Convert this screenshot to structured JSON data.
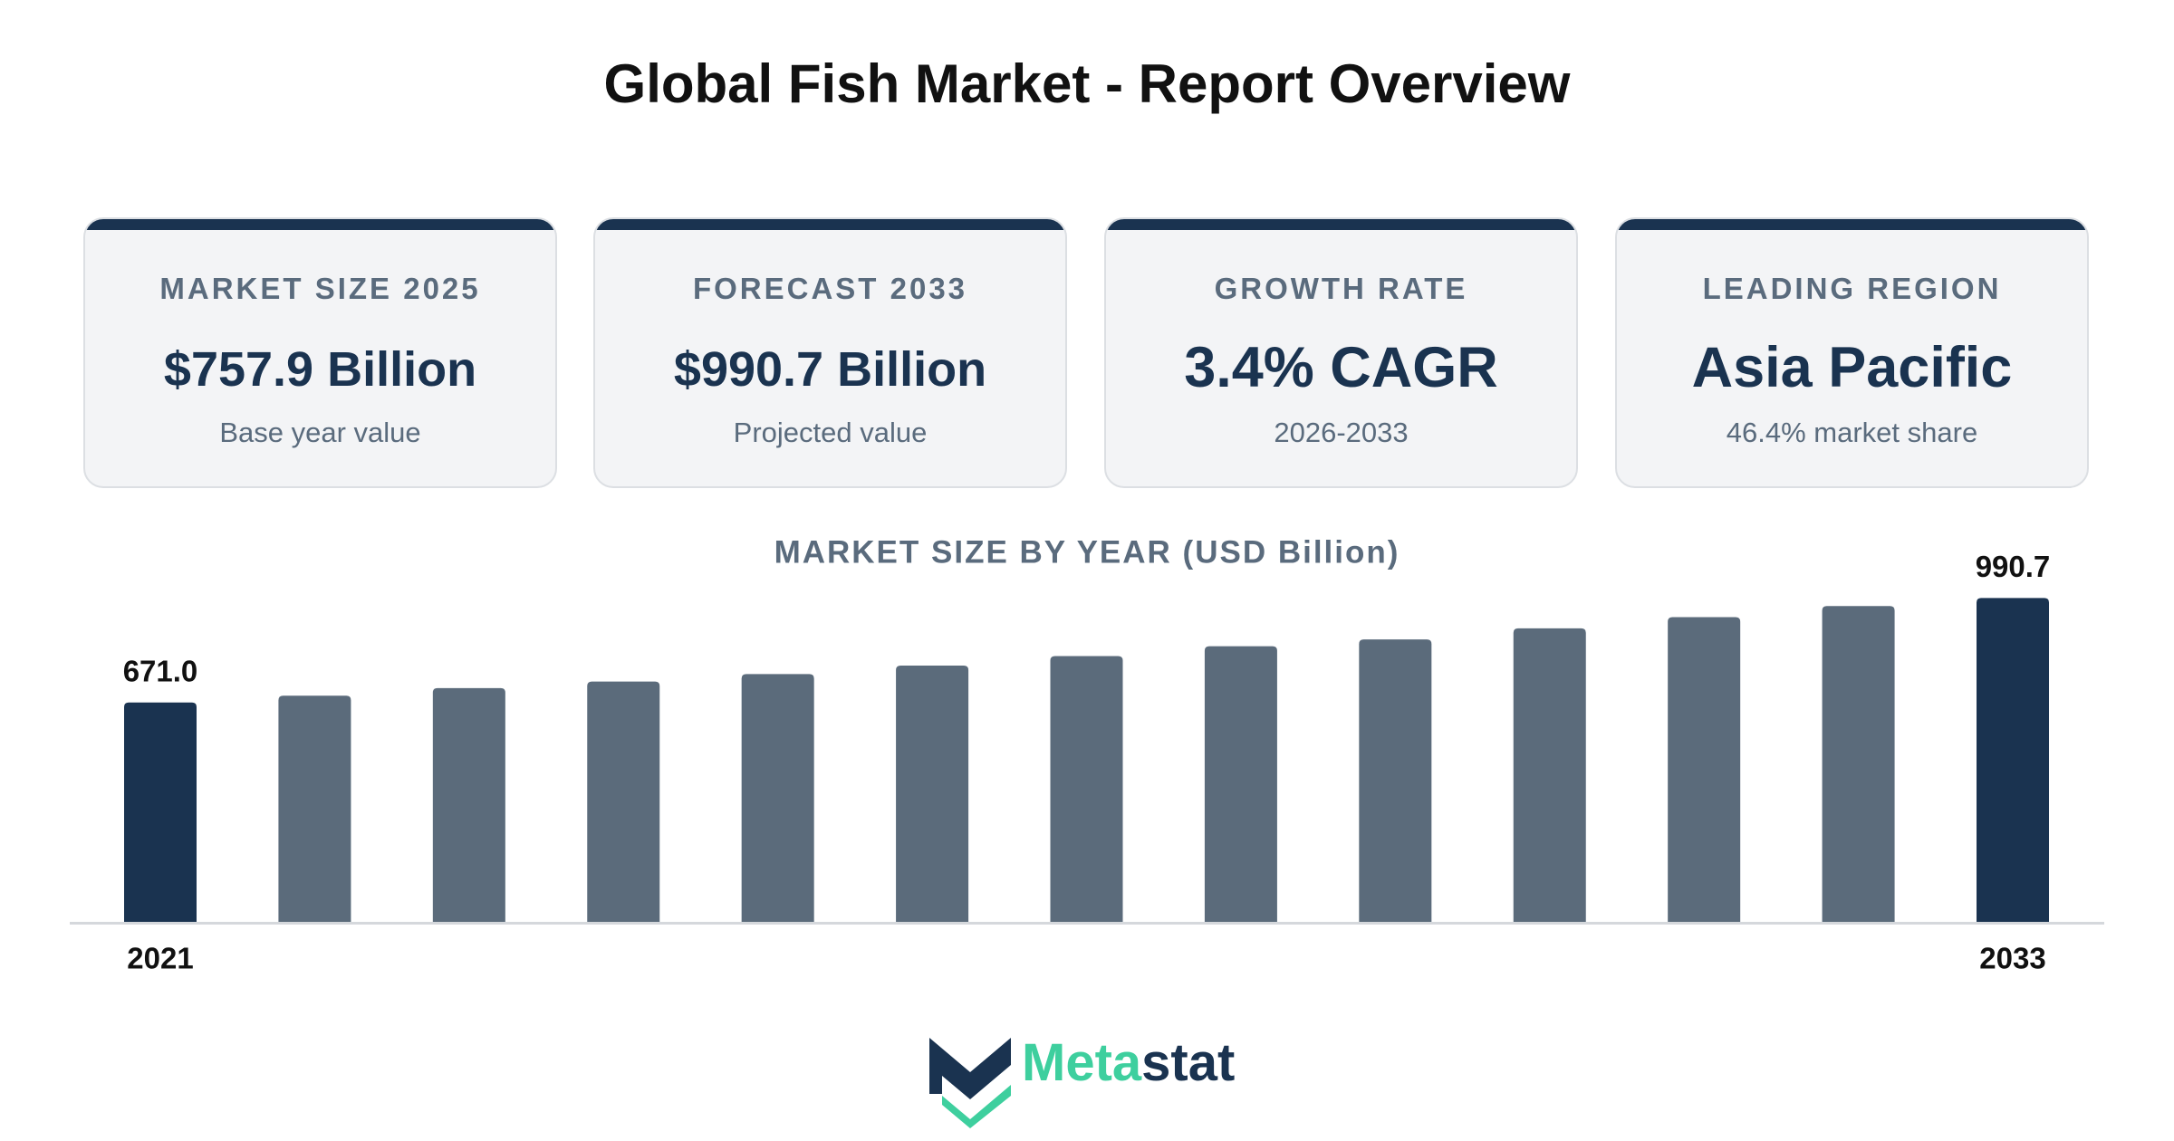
{
  "title": "Global Fish Market - Report Overview",
  "cards": [
    {
      "label": "MARKET SIZE 2025",
      "value": "$757.9 Billion",
      "sub": "Base year value"
    },
    {
      "label": "FORECAST 2033",
      "value": "$990.7 Billion",
      "sub": "Projected value"
    },
    {
      "label": "GROWTH RATE",
      "value": "3.4% CAGR",
      "sub": "2026-2033"
    },
    {
      "label": "LEADING REGION",
      "value": "Asia Pacific",
      "sub": "46.4% market share"
    }
  ],
  "chart_data": {
    "type": "bar",
    "title": "MARKET SIZE BY YEAR (USD Billion)",
    "categories": [
      "2021",
      null,
      null,
      null,
      null,
      null,
      null,
      null,
      null,
      null,
      null,
      null,
      "2033"
    ],
    "values": [
      671.0,
      692,
      715,
      735,
      757.9,
      784,
      813,
      843,
      864,
      898,
      932,
      966,
      990.7
    ],
    "value_labels": [
      "671.0",
      null,
      null,
      null,
      null,
      null,
      null,
      null,
      null,
      null,
      null,
      null,
      "990.7"
    ],
    "colors": [
      "#1a3350",
      "#5b6b7b",
      "#5b6b7b",
      "#5b6b7b",
      "#5b6b7b",
      "#5b6b7b",
      "#5b6b7b",
      "#5b6b7b",
      "#5b6b7b",
      "#5b6b7b",
      "#5b6b7b",
      "#5b6b7b",
      "#1a3350"
    ],
    "ylim": [
      0,
      1000
    ]
  },
  "logo": {
    "part1": "Meta",
    "part2": "stat"
  }
}
